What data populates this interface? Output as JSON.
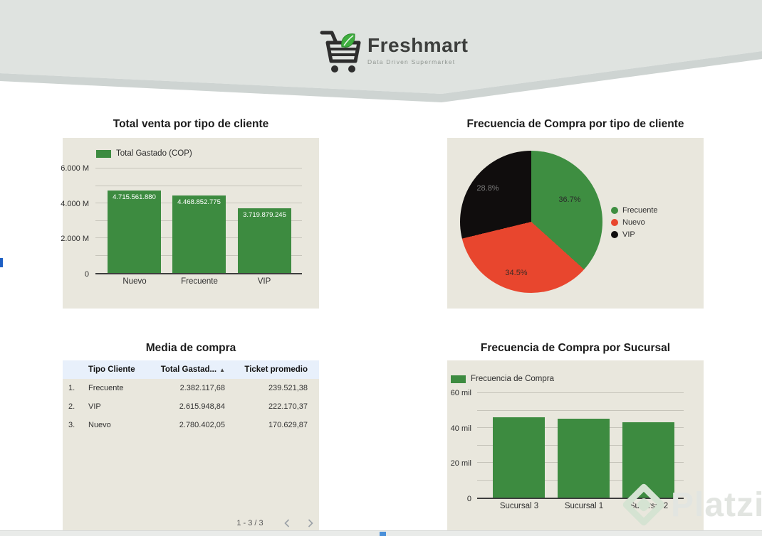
{
  "header": {
    "brand": "Freshmart",
    "tagline": "Data Driven Supermarket"
  },
  "icons": {
    "sort_asc": "▲"
  },
  "watermark": {
    "text": "Platzi"
  },
  "colors": {
    "green": "#3d8b40",
    "pie_green": "#3e8e41",
    "pie_red": "#e8462e",
    "pie_black": "#100d0d",
    "panel_bg": "#e9e7dd",
    "table_header_bg": "#e8f0fb",
    "header_band": "#dfe3e0",
    "header_stripe": "#ced4d2"
  },
  "chart_data": [
    {
      "id": "total-venta",
      "type": "bar",
      "title": "Total venta por tipo de cliente",
      "legend": [
        "Total Gastado (COP)"
      ],
      "categories": [
        "Nuevo",
        "Frecuente",
        "VIP"
      ],
      "values": [
        4715561880,
        4468852775,
        3719879245
      ],
      "value_labels": [
        "4.715.561.880",
        "4.468.852.775",
        "3.719.879.245"
      ],
      "ylabel": "COP",
      "ylim": [
        0,
        6000000000
      ],
      "y_ticks": [
        "6.000 M",
        "4.000 M",
        "2.000 M",
        "0"
      ],
      "grid": true,
      "bar_color": "#3d8b40",
      "legend_position": "top"
    },
    {
      "id": "frecuencia-tipo-cliente",
      "type": "pie",
      "title": "Frecuencia de Compra por tipo de cliente",
      "slices": [
        {
          "label": "Frecuente",
          "pct": 36.7,
          "pct_label": "36.7%",
          "color": "#3e8e41"
        },
        {
          "label": "Nuevo",
          "pct": 34.5,
          "pct_label": "34.5%",
          "color": "#e8462e"
        },
        {
          "label": "VIP",
          "pct": 28.8,
          "pct_label": "28.8%",
          "color": "#100d0d"
        }
      ],
      "legend_position": "right"
    },
    {
      "id": "media-de-compra",
      "type": "table",
      "title": "Media de compra",
      "columns": [
        "Tipo Cliente",
        "Total Gastad...",
        "Ticket promedio"
      ],
      "sort": {
        "column": "Total Gastad...",
        "direction": "asc"
      },
      "rows": [
        {
          "index": "1.",
          "tipo": "Frecuente",
          "total": "2.382.117,68",
          "ticket": "239.521,38"
        },
        {
          "index": "2.",
          "tipo": "VIP",
          "total": "2.615.948,84",
          "ticket": "222.170,37"
        },
        {
          "index": "3.",
          "tipo": "Nuevo",
          "total": "2.780.402,05",
          "ticket": "170.629,87"
        }
      ],
      "pagination": "1 - 3 / 3"
    },
    {
      "id": "frecuencia-sucursal",
      "type": "bar",
      "title": "Frecuencia de Compra por Sucursal",
      "legend": [
        "Frecuencia de Compra"
      ],
      "categories": [
        "Sucursal 3",
        "Sucursal 1",
        "Sucursal 2"
      ],
      "values": [
        46200,
        45400,
        43100
      ],
      "ylim": [
        0,
        60000
      ],
      "y_ticks": [
        "60 mil",
        "40 mil",
        "20 mil",
        "0"
      ],
      "grid": true,
      "bar_color": "#3d8b40",
      "legend_position": "top"
    }
  ]
}
